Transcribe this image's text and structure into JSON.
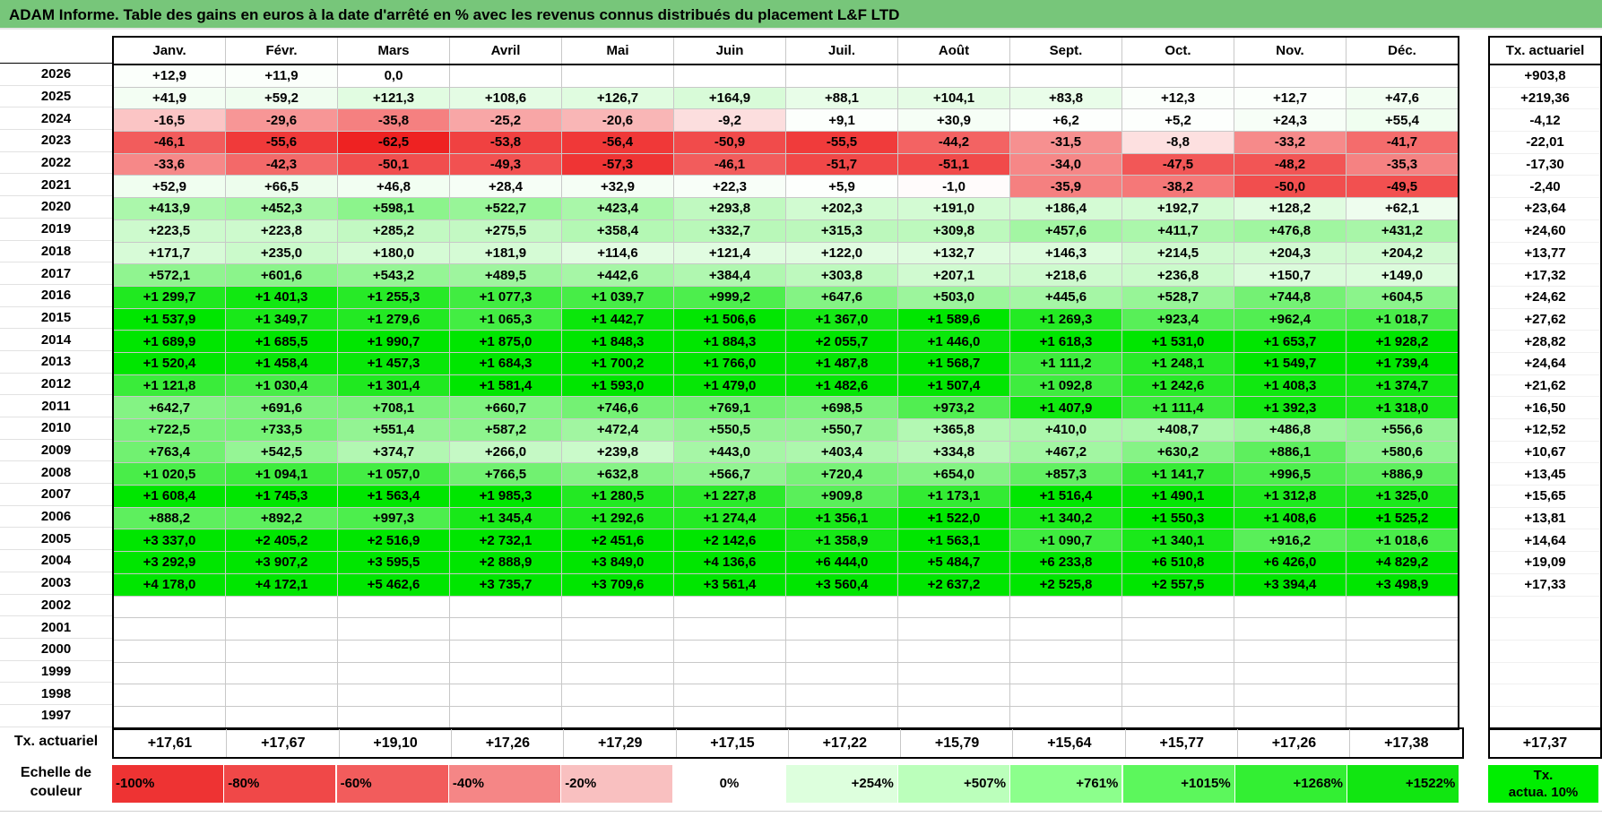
{
  "title": "ADAM Informe. Table des gains en euros à la date d'arrêté en % avec les revenus connus distribués du placement L&F LTD",
  "months": [
    "Janv.",
    "Févr.",
    "Mars",
    "Avril",
    "Mai",
    "Juin",
    "Juil.",
    "Août",
    "Sept.",
    "Oct.",
    "Nov.",
    "Déc."
  ],
  "tx_header": "Tx. actuariel",
  "rows": [
    {
      "year": "2026",
      "values": [
        "+12,9",
        "+11,9",
        "0,0",
        "",
        "",
        "",
        "",
        "",
        "",
        "",
        "",
        ""
      ],
      "tx": "+903,8"
    },
    {
      "year": "2025",
      "values": [
        "+41,9",
        "+59,2",
        "+121,3",
        "+108,6",
        "+126,7",
        "+164,9",
        "+88,1",
        "+104,1",
        "+83,8",
        "+12,3",
        "+12,7",
        "+47,6"
      ],
      "tx": "+219,36"
    },
    {
      "year": "2024",
      "values": [
        "-16,5",
        "-29,6",
        "-35,8",
        "-25,2",
        "-20,6",
        "-9,2",
        "+9,1",
        "+30,9",
        "+6,2",
        "+5,2",
        "+24,3",
        "+55,4"
      ],
      "tx": "-4,12"
    },
    {
      "year": "2023",
      "values": [
        "-46,1",
        "-55,6",
        "-62,5",
        "-53,8",
        "-56,4",
        "-50,9",
        "-55,5",
        "-44,2",
        "-31,5",
        "-8,8",
        "-33,2",
        "-41,7"
      ],
      "tx": "-22,01"
    },
    {
      "year": "2022",
      "values": [
        "-33,6",
        "-42,3",
        "-50,1",
        "-49,3",
        "-57,3",
        "-46,1",
        "-51,7",
        "-51,1",
        "-34,0",
        "-47,5",
        "-48,2",
        "-35,3"
      ],
      "tx": "-17,30"
    },
    {
      "year": "2021",
      "values": [
        "+52,9",
        "+66,5",
        "+46,8",
        "+28,4",
        "+32,9",
        "+22,3",
        "+5,9",
        "-1,0",
        "-35,9",
        "-38,2",
        "-50,0",
        "-49,5"
      ],
      "tx": "-2,40"
    },
    {
      "year": "2020",
      "values": [
        "+413,9",
        "+452,3",
        "+598,1",
        "+522,7",
        "+423,4",
        "+293,8",
        "+202,3",
        "+191,0",
        "+186,4",
        "+192,7",
        "+128,2",
        "+62,1"
      ],
      "tx": "+23,64"
    },
    {
      "year": "2019",
      "values": [
        "+223,5",
        "+223,8",
        "+285,2",
        "+275,5",
        "+358,4",
        "+332,7",
        "+315,3",
        "+309,8",
        "+457,6",
        "+411,7",
        "+476,8",
        "+431,2"
      ],
      "tx": "+24,60"
    },
    {
      "year": "2018",
      "values": [
        "+171,7",
        "+235,0",
        "+180,0",
        "+181,9",
        "+114,6",
        "+121,4",
        "+122,0",
        "+132,7",
        "+146,3",
        "+214,5",
        "+204,3",
        "+204,2"
      ],
      "tx": "+13,77"
    },
    {
      "year": "2017",
      "values": [
        "+572,1",
        "+601,6",
        "+543,2",
        "+489,5",
        "+442,6",
        "+384,4",
        "+303,8",
        "+207,1",
        "+218,6",
        "+236,8",
        "+150,7",
        "+149,0"
      ],
      "tx": "+17,32"
    },
    {
      "year": "2016",
      "values": [
        "+1 299,7",
        "+1 401,3",
        "+1 255,3",
        "+1 077,3",
        "+1 039,7",
        "+999,2",
        "+647,6",
        "+503,0",
        "+445,6",
        "+528,7",
        "+744,8",
        "+604,5"
      ],
      "tx": "+24,62"
    },
    {
      "year": "2015",
      "values": [
        "+1 537,9",
        "+1 349,7",
        "+1 279,6",
        "+1 065,3",
        "+1 442,7",
        "+1 506,6",
        "+1 367,0",
        "+1 589,6",
        "+1 269,3",
        "+923,4",
        "+962,4",
        "+1 018,7"
      ],
      "tx": "+27,62"
    },
    {
      "year": "2014",
      "values": [
        "+1 689,9",
        "+1 685,5",
        "+1 990,7",
        "+1 875,0",
        "+1 848,3",
        "+1 884,3",
        "+2 055,7",
        "+1 446,0",
        "+1 618,3",
        "+1 531,0",
        "+1 653,7",
        "+1 928,2"
      ],
      "tx": "+28,82"
    },
    {
      "year": "2013",
      "values": [
        "+1 520,4",
        "+1 458,4",
        "+1 457,3",
        "+1 684,3",
        "+1 700,2",
        "+1 766,0",
        "+1 487,8",
        "+1 568,7",
        "+1 111,2",
        "+1 248,1",
        "+1 549,7",
        "+1 739,4"
      ],
      "tx": "+24,64"
    },
    {
      "year": "2012",
      "values": [
        "+1 121,8",
        "+1 030,4",
        "+1 301,4",
        "+1 581,4",
        "+1 593,0",
        "+1 479,0",
        "+1 482,6",
        "+1 507,4",
        "+1 092,8",
        "+1 242,6",
        "+1 408,3",
        "+1 374,7"
      ],
      "tx": "+21,62"
    },
    {
      "year": "2011",
      "values": [
        "+642,7",
        "+691,6",
        "+708,1",
        "+660,7",
        "+746,6",
        "+769,1",
        "+698,5",
        "+973,2",
        "+1 407,9",
        "+1 111,4",
        "+1 392,3",
        "+1 318,0"
      ],
      "tx": "+16,50"
    },
    {
      "year": "2010",
      "values": [
        "+722,5",
        "+733,5",
        "+551,4",
        "+587,2",
        "+472,4",
        "+550,5",
        "+550,7",
        "+365,8",
        "+410,0",
        "+408,7",
        "+486,8",
        "+556,6"
      ],
      "tx": "+12,52"
    },
    {
      "year": "2009",
      "values": [
        "+763,4",
        "+542,5",
        "+374,7",
        "+266,0",
        "+239,8",
        "+443,0",
        "+403,4",
        "+334,8",
        "+467,2",
        "+630,2",
        "+886,1",
        "+580,6"
      ],
      "tx": "+10,67"
    },
    {
      "year": "2008",
      "values": [
        "+1 020,5",
        "+1 094,1",
        "+1 057,0",
        "+766,5",
        "+632,8",
        "+566,7",
        "+720,4",
        "+654,0",
        "+857,3",
        "+1 141,7",
        "+996,5",
        "+886,9"
      ],
      "tx": "+13,45"
    },
    {
      "year": "2007",
      "values": [
        "+1 608,4",
        "+1 745,3",
        "+1 563,4",
        "+1 985,3",
        "+1 280,5",
        "+1 227,8",
        "+909,8",
        "+1 173,1",
        "+1 516,4",
        "+1 490,1",
        "+1 312,8",
        "+1 325,0"
      ],
      "tx": "+15,65"
    },
    {
      "year": "2006",
      "values": [
        "+888,2",
        "+892,2",
        "+997,3",
        "+1 345,4",
        "+1 292,6",
        "+1 274,4",
        "+1 356,1",
        "+1 522,0",
        "+1 340,2",
        "+1 550,3",
        "+1 408,6",
        "+1 525,2"
      ],
      "tx": "+13,81"
    },
    {
      "year": "2005",
      "values": [
        "+3 337,0",
        "+2 405,2",
        "+2 516,9",
        "+2 732,1",
        "+2 451,6",
        "+2 142,6",
        "+1 358,9",
        "+1 563,1",
        "+1 090,7",
        "+1 340,1",
        "+916,2",
        "+1 018,6"
      ],
      "tx": "+14,64"
    },
    {
      "year": "2004",
      "values": [
        "+3 292,9",
        "+3 907,2",
        "+3 595,5",
        "+2 888,9",
        "+3 849,0",
        "+4 136,6",
        "+6 444,0",
        "+5 484,7",
        "+6 233,8",
        "+6 510,8",
        "+6 426,0",
        "+4 829,2"
      ],
      "tx": "+19,09"
    },
    {
      "year": "2003",
      "values": [
        "+4 178,0",
        "+4 172,1",
        "+5 462,6",
        "+3 735,7",
        "+3 709,6",
        "+3 561,4",
        "+3 560,4",
        "+2 637,2",
        "+2 525,8",
        "+2 557,5",
        "+3 394,4",
        "+3 498,9"
      ],
      "tx": "+17,33"
    },
    {
      "year": "2002",
      "values": [
        "",
        "",
        "",
        "",
        "",
        "",
        "",
        "",
        "",
        "",
        "",
        ""
      ],
      "tx": ""
    },
    {
      "year": "2001",
      "values": [
        "",
        "",
        "",
        "",
        "",
        "",
        "",
        "",
        "",
        "",
        "",
        ""
      ],
      "tx": ""
    },
    {
      "year": "2000",
      "values": [
        "",
        "",
        "",
        "",
        "",
        "",
        "",
        "",
        "",
        "",
        "",
        ""
      ],
      "tx": ""
    },
    {
      "year": "1999",
      "values": [
        "",
        "",
        "",
        "",
        "",
        "",
        "",
        "",
        "",
        "",
        "",
        ""
      ],
      "tx": ""
    },
    {
      "year": "1998",
      "values": [
        "",
        "",
        "",
        "",
        "",
        "",
        "",
        "",
        "",
        "",
        "",
        ""
      ],
      "tx": ""
    },
    {
      "year": "1997",
      "values": [
        "",
        "",
        "",
        "",
        "",
        "",
        "",
        "",
        "",
        "",
        "",
        ""
      ],
      "tx": ""
    }
  ],
  "footer": {
    "label": "Tx. actuariel",
    "values": [
      "+17,61",
      "+17,67",
      "+19,10",
      "+17,26",
      "+17,29",
      "+17,15",
      "+17,22",
      "+15,79",
      "+15,64",
      "+15,77",
      "+17,26",
      "+17,38"
    ],
    "total": "+17,37"
  },
  "scale": {
    "label_line1": "Echelle de",
    "label_line2": "couleur",
    "items": [
      {
        "text": "-100%",
        "color": "#ee3333"
      },
      {
        "text": "-80%",
        "color": "#f04848"
      },
      {
        "text": "-60%",
        "color": "#f25c5c"
      },
      {
        "text": "-40%",
        "color": "#f58686"
      },
      {
        "text": "-20%",
        "color": "#f9c0c0"
      },
      {
        "text": "0%",
        "color": "#ffffff"
      },
      {
        "text": "+254%",
        "color": "#ddffdd"
      },
      {
        "text": "+507%",
        "color": "#bbffbb"
      },
      {
        "text": "+761%",
        "color": "#8cff8c"
      },
      {
        "text": "+1015%",
        "color": "#5cf75c"
      },
      {
        "text": "+1268%",
        "color": "#33ef33"
      },
      {
        "text": "+1522%",
        "color": "#11e611"
      }
    ],
    "tx_line1": "Tx.",
    "tx_line2": "actua. 10%"
  }
}
